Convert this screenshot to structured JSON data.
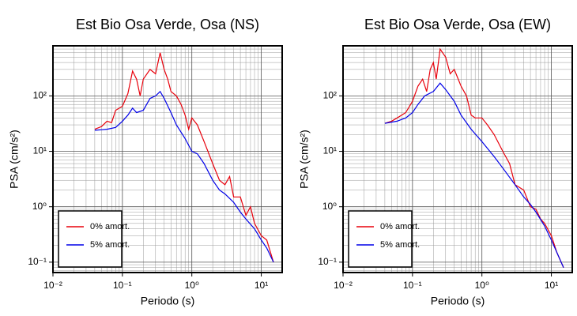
{
  "chart_data": [
    {
      "type": "line",
      "title": "Est Bio Osa Verde, Osa (NS)",
      "x_label": "Periodo (s)",
      "y_label": "PSA (cm/s²)",
      "xscale": "log",
      "yscale": "log",
      "grid": true,
      "minor_grid": true,
      "legend": "lower left",
      "xlim": [
        0.01,
        20
      ],
      "ylim": [
        0.065,
        800
      ],
      "xticks": [
        {
          "value": 0.01,
          "label": "10⁻²"
        },
        {
          "value": 0.1,
          "label": "10⁻¹"
        },
        {
          "value": 1,
          "label": "10⁰"
        },
        {
          "value": 10,
          "label": "10¹"
        }
      ],
      "yticks": [
        {
          "value": 0.1,
          "label": "10⁻¹"
        },
        {
          "value": 1,
          "label": "10⁰"
        },
        {
          "value": 10,
          "label": "10¹"
        },
        {
          "value": 100,
          "label": "10²"
        }
      ],
      "series": [
        {
          "name": "0% amort.",
          "color": "#e8000b",
          "x": [
            0.04,
            0.05,
            0.06,
            0.07,
            0.08,
            0.1,
            0.12,
            0.14,
            0.16,
            0.18,
            0.2,
            0.25,
            0.3,
            0.35,
            0.4,
            0.45,
            0.5,
            0.6,
            0.7,
            0.8,
            0.9,
            1.0,
            1.2,
            1.5,
            2,
            2.5,
            3,
            3.5,
            4,
            5,
            6,
            7,
            8,
            10,
            12,
            15
          ],
          "values": [
            25,
            28,
            35,
            33,
            55,
            65,
            110,
            280,
            200,
            100,
            200,
            300,
            250,
            600,
            300,
            200,
            120,
            100,
            70,
            45,
            25,
            40,
            30,
            15,
            6,
            3,
            2.5,
            3.5,
            1.5,
            1.5,
            0.7,
            1.0,
            0.5,
            0.3,
            0.25,
            0.1
          ]
        },
        {
          "name": "5% amort.",
          "color": "#0000e8",
          "x": [
            0.04,
            0.06,
            0.08,
            0.1,
            0.12,
            0.14,
            0.16,
            0.2,
            0.25,
            0.3,
            0.35,
            0.4,
            0.5,
            0.6,
            0.8,
            1,
            1.2,
            1.5,
            2,
            2.5,
            3,
            4,
            5,
            6,
            8,
            10,
            12,
            15
          ],
          "values": [
            24,
            25,
            27,
            35,
            45,
            60,
            50,
            55,
            90,
            100,
            120,
            90,
            50,
            30,
            17,
            10,
            9,
            6,
            3,
            2,
            1.7,
            1.2,
            0.8,
            0.6,
            0.4,
            0.25,
            0.18,
            0.1
          ]
        }
      ]
    },
    {
      "type": "line",
      "title": "Est Bio Osa Verde, Osa (EW)",
      "x_label": "Periodo (s)",
      "y_label": "PSA (cm/s²)",
      "xscale": "log",
      "yscale": "log",
      "grid": true,
      "minor_grid": true,
      "legend": "lower left",
      "xlim": [
        0.01,
        20
      ],
      "ylim": [
        0.065,
        800
      ],
      "xticks": [
        {
          "value": 0.01,
          "label": "10⁻²"
        },
        {
          "value": 0.1,
          "label": "10⁻¹"
        },
        {
          "value": 1,
          "label": "10⁰"
        },
        {
          "value": 10,
          "label": "10¹"
        }
      ],
      "yticks": [
        {
          "value": 0.1,
          "label": "10⁻¹"
        },
        {
          "value": 1,
          "label": "10⁰"
        },
        {
          "value": 10,
          "label": "10¹"
        },
        {
          "value": 100,
          "label": "10²"
        }
      ],
      "series": [
        {
          "name": "0% amort.",
          "color": "#e8000b",
          "x": [
            0.04,
            0.05,
            0.06,
            0.07,
            0.08,
            0.1,
            0.12,
            0.14,
            0.16,
            0.18,
            0.2,
            0.22,
            0.25,
            0.3,
            0.35,
            0.4,
            0.5,
            0.6,
            0.7,
            0.8,
            1,
            1.2,
            1.5,
            2,
            2.5,
            3,
            4,
            5,
            6,
            7,
            8,
            10,
            12,
            15
          ],
          "values": [
            32,
            35,
            40,
            45,
            50,
            80,
            150,
            200,
            120,
            300,
            400,
            200,
            700,
            500,
            250,
            300,
            150,
            100,
            45,
            40,
            40,
            30,
            20,
            10,
            6,
            2.5,
            2,
            1,
            0.9,
            0.6,
            0.5,
            0.3,
            0.15,
            0.08
          ]
        },
        {
          "name": "5% amort.",
          "color": "#0000e8",
          "x": [
            0.04,
            0.06,
            0.08,
            0.1,
            0.12,
            0.15,
            0.2,
            0.25,
            0.3,
            0.4,
            0.5,
            0.7,
            1,
            1.5,
            2,
            3,
            4,
            5,
            6,
            8,
            10,
            12,
            15
          ],
          "values": [
            32,
            35,
            40,
            50,
            70,
            100,
            120,
            170,
            130,
            80,
            45,
            25,
            15,
            8,
            5,
            2.5,
            1.5,
            1.1,
            0.8,
            0.45,
            0.25,
            0.15,
            0.08
          ]
        }
      ]
    }
  ]
}
